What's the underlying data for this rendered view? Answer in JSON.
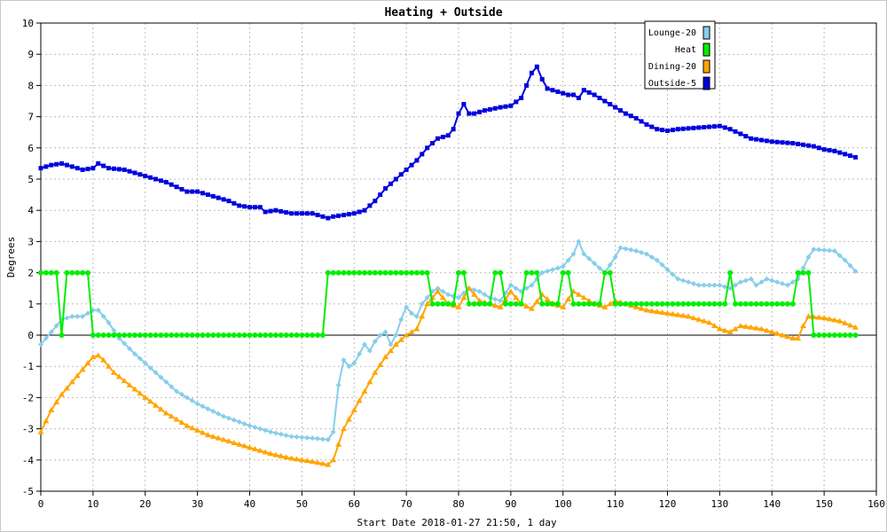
{
  "chart_data": {
    "type": "line",
    "title": "Heating + Outside",
    "xlabel": "Start Date 2018-01-27 21:50, 1 day",
    "ylabel": "Degrees",
    "xlim": [
      0,
      160
    ],
    "ylim": [
      -5,
      10
    ],
    "xticks": [
      0,
      10,
      20,
      30,
      40,
      50,
      60,
      70,
      80,
      90,
      100,
      110,
      120,
      130,
      140,
      150,
      160
    ],
    "yticks": [
      -5,
      -4,
      -3,
      -2,
      -1,
      0,
      1,
      2,
      3,
      4,
      5,
      6,
      7,
      8,
      9,
      10
    ],
    "grid": true,
    "legend": "top-right",
    "series": [
      {
        "name": "Lounge-20",
        "color": "#87ceeb",
        "marker": "diamond",
        "anchors": [
          [
            0,
            -0.3
          ],
          [
            2,
            0.1
          ],
          [
            4,
            0.5
          ],
          [
            6,
            0.6
          ],
          [
            8,
            0.6
          ],
          [
            10,
            0.8
          ],
          [
            11,
            0.8
          ],
          [
            13,
            0.4
          ],
          [
            15,
            -0.1
          ],
          [
            18,
            -0.6
          ],
          [
            22,
            -1.2
          ],
          [
            26,
            -1.8
          ],
          [
            30,
            -2.2
          ],
          [
            35,
            -2.6
          ],
          [
            40,
            -2.9
          ],
          [
            44,
            -3.1
          ],
          [
            48,
            -3.25
          ],
          [
            52,
            -3.3
          ],
          [
            55,
            -3.35
          ],
          [
            56,
            -3.1
          ],
          [
            57,
            -1.6
          ],
          [
            58,
            -0.8
          ],
          [
            59,
            -1.0
          ],
          [
            60,
            -0.9
          ],
          [
            61,
            -0.6
          ],
          [
            62,
            -0.3
          ],
          [
            63,
            -0.5
          ],
          [
            64,
            -0.2
          ],
          [
            65,
            0.0
          ],
          [
            66,
            0.1
          ],
          [
            67,
            -0.3
          ],
          [
            68,
            0.0
          ],
          [
            69,
            0.5
          ],
          [
            70,
            0.9
          ],
          [
            71,
            0.7
          ],
          [
            72,
            0.6
          ],
          [
            73,
            1.0
          ],
          [
            75,
            1.4
          ],
          [
            76,
            1.5
          ],
          [
            78,
            1.3
          ],
          [
            80,
            1.2
          ],
          [
            82,
            1.5
          ],
          [
            84,
            1.4
          ],
          [
            86,
            1.2
          ],
          [
            88,
            1.1
          ],
          [
            90,
            1.6
          ],
          [
            92,
            1.4
          ],
          [
            94,
            1.6
          ],
          [
            96,
            2.0
          ],
          [
            98,
            2.1
          ],
          [
            100,
            2.2
          ],
          [
            102,
            2.6
          ],
          [
            103,
            3.0
          ],
          [
            104,
            2.6
          ],
          [
            106,
            2.3
          ],
          [
            108,
            2.0
          ],
          [
            110,
            2.5
          ],
          [
            111,
            2.8
          ],
          [
            114,
            2.7
          ],
          [
            116,
            2.6
          ],
          [
            118,
            2.4
          ],
          [
            120,
            2.1
          ],
          [
            122,
            1.8
          ],
          [
            124,
            1.7
          ],
          [
            126,
            1.6
          ],
          [
            130,
            1.6
          ],
          [
            132,
            1.5
          ],
          [
            134,
            1.7
          ],
          [
            136,
            1.8
          ],
          [
            137,
            1.6
          ],
          [
            139,
            1.8
          ],
          [
            141,
            1.7
          ],
          [
            143,
            1.6
          ],
          [
            145,
            1.8
          ],
          [
            147,
            2.5
          ],
          [
            148,
            2.75
          ],
          [
            152,
            2.7
          ],
          [
            154,
            2.4
          ],
          [
            156,
            2.05
          ]
        ]
      },
      {
        "name": "Heat",
        "color": "#00ee00",
        "marker": "circle",
        "anchors": [
          [
            0,
            2
          ],
          [
            3,
            2
          ],
          [
            4,
            0
          ],
          [
            5,
            2
          ],
          [
            9,
            2
          ],
          [
            10,
            0
          ],
          [
            54,
            0
          ],
          [
            55,
            2
          ],
          [
            74,
            2
          ],
          [
            75,
            1
          ],
          [
            79,
            1
          ],
          [
            80,
            2
          ],
          [
            81,
            2
          ],
          [
            82,
            1
          ],
          [
            86,
            1
          ],
          [
            87,
            2
          ],
          [
            88,
            2
          ],
          [
            89,
            1
          ],
          [
            92,
            1
          ],
          [
            93,
            2
          ],
          [
            95,
            2
          ],
          [
            96,
            1
          ],
          [
            99,
            1
          ],
          [
            100,
            2
          ],
          [
            101,
            2
          ],
          [
            102,
            1
          ],
          [
            107,
            1
          ],
          [
            108,
            2
          ],
          [
            109,
            2
          ],
          [
            110,
            1
          ],
          [
            131,
            1
          ],
          [
            132,
            2
          ],
          [
            133,
            1
          ],
          [
            144,
            1
          ],
          [
            145,
            2
          ],
          [
            147,
            2
          ],
          [
            148,
            0
          ],
          [
            156,
            0
          ]
        ]
      },
      {
        "name": "Dining-20",
        "color": "#ffa500",
        "marker": "triangle",
        "anchors": [
          [
            0,
            -3.1
          ],
          [
            2,
            -2.4
          ],
          [
            4,
            -1.9
          ],
          [
            6,
            -1.5
          ],
          [
            8,
            -1.1
          ],
          [
            10,
            -0.7
          ],
          [
            11,
            -0.65
          ],
          [
            12,
            -0.8
          ],
          [
            14,
            -1.2
          ],
          [
            17,
            -1.6
          ],
          [
            20,
            -2.0
          ],
          [
            24,
            -2.5
          ],
          [
            28,
            -2.9
          ],
          [
            32,
            -3.2
          ],
          [
            36,
            -3.4
          ],
          [
            40,
            -3.6
          ],
          [
            44,
            -3.8
          ],
          [
            48,
            -3.95
          ],
          [
            52,
            -4.05
          ],
          [
            55,
            -4.15
          ],
          [
            56,
            -4.0
          ],
          [
            57,
            -3.5
          ],
          [
            58,
            -3.0
          ],
          [
            60,
            -2.4
          ],
          [
            62,
            -1.8
          ],
          [
            64,
            -1.2
          ],
          [
            66,
            -0.7
          ],
          [
            68,
            -0.3
          ],
          [
            70,
            0.0
          ],
          [
            72,
            0.2
          ],
          [
            74,
            1.0
          ],
          [
            76,
            1.4
          ],
          [
            78,
            1.0
          ],
          [
            80,
            0.9
          ],
          [
            82,
            1.5
          ],
          [
            84,
            1.1
          ],
          [
            86,
            1.0
          ],
          [
            88,
            0.9
          ],
          [
            90,
            1.4
          ],
          [
            92,
            1.0
          ],
          [
            94,
            0.85
          ],
          [
            96,
            1.3
          ],
          [
            98,
            1.0
          ],
          [
            100,
            0.9
          ],
          [
            102,
            1.4
          ],
          [
            104,
            1.2
          ],
          [
            106,
            1.0
          ],
          [
            108,
            0.9
          ],
          [
            110,
            1.1
          ],
          [
            112,
            1.0
          ],
          [
            114,
            0.9
          ],
          [
            116,
            0.8
          ],
          [
            120,
            0.7
          ],
          [
            124,
            0.6
          ],
          [
            126,
            0.5
          ],
          [
            128,
            0.4
          ],
          [
            130,
            0.2
          ],
          [
            132,
            0.1
          ],
          [
            134,
            0.3
          ],
          [
            136,
            0.25
          ],
          [
            138,
            0.2
          ],
          [
            140,
            0.1
          ],
          [
            142,
            0.0
          ],
          [
            144,
            -0.1
          ],
          [
            145,
            -0.1
          ],
          [
            146,
            0.3
          ],
          [
            147,
            0.6
          ],
          [
            150,
            0.55
          ],
          [
            153,
            0.45
          ],
          [
            156,
            0.25
          ]
        ]
      },
      {
        "name": "Outside-5",
        "color": "#0000dd",
        "marker": "square",
        "anchors": [
          [
            0,
            5.35
          ],
          [
            2,
            5.45
          ],
          [
            4,
            5.5
          ],
          [
            6,
            5.4
          ],
          [
            8,
            5.3
          ],
          [
            10,
            5.35
          ],
          [
            11,
            5.5
          ],
          [
            13,
            5.35
          ],
          [
            16,
            5.3
          ],
          [
            18,
            5.2
          ],
          [
            20,
            5.1
          ],
          [
            22,
            5.0
          ],
          [
            24,
            4.9
          ],
          [
            26,
            4.75
          ],
          [
            28,
            4.6
          ],
          [
            30,
            4.6
          ],
          [
            32,
            4.5
          ],
          [
            34,
            4.4
          ],
          [
            36,
            4.3
          ],
          [
            38,
            4.15
          ],
          [
            40,
            4.1
          ],
          [
            42,
            4.1
          ],
          [
            43,
            3.95
          ],
          [
            45,
            4.0
          ],
          [
            48,
            3.9
          ],
          [
            52,
            3.9
          ],
          [
            54,
            3.8
          ],
          [
            55,
            3.75
          ],
          [
            56,
            3.8
          ],
          [
            58,
            3.85
          ],
          [
            60,
            3.9
          ],
          [
            62,
            4.0
          ],
          [
            64,
            4.3
          ],
          [
            66,
            4.7
          ],
          [
            68,
            5.0
          ],
          [
            70,
            5.3
          ],
          [
            72,
            5.6
          ],
          [
            74,
            6.0
          ],
          [
            76,
            6.3
          ],
          [
            78,
            6.4
          ],
          [
            79,
            6.6
          ],
          [
            80,
            7.1
          ],
          [
            81,
            7.4
          ],
          [
            82,
            7.1
          ],
          [
            83,
            7.1
          ],
          [
            85,
            7.2
          ],
          [
            88,
            7.3
          ],
          [
            90,
            7.35
          ],
          [
            92,
            7.6
          ],
          [
            94,
            8.4
          ],
          [
            95,
            8.6
          ],
          [
            96,
            8.2
          ],
          [
            97,
            7.9
          ],
          [
            99,
            7.8
          ],
          [
            101,
            7.7
          ],
          [
            102,
            7.7
          ],
          [
            103,
            7.6
          ],
          [
            104,
            7.85
          ],
          [
            106,
            7.7
          ],
          [
            108,
            7.5
          ],
          [
            110,
            7.3
          ],
          [
            112,
            7.1
          ],
          [
            114,
            6.95
          ],
          [
            116,
            6.75
          ],
          [
            118,
            6.6
          ],
          [
            120,
            6.55
          ],
          [
            122,
            6.6
          ],
          [
            126,
            6.65
          ],
          [
            130,
            6.7
          ],
          [
            132,
            6.6
          ],
          [
            134,
            6.45
          ],
          [
            136,
            6.3
          ],
          [
            138,
            6.25
          ],
          [
            140,
            6.2
          ],
          [
            144,
            6.15
          ],
          [
            146,
            6.1
          ],
          [
            148,
            6.05
          ],
          [
            150,
            5.95
          ],
          [
            152,
            5.9
          ],
          [
            154,
            5.8
          ],
          [
            156,
            5.7
          ]
        ]
      }
    ]
  }
}
